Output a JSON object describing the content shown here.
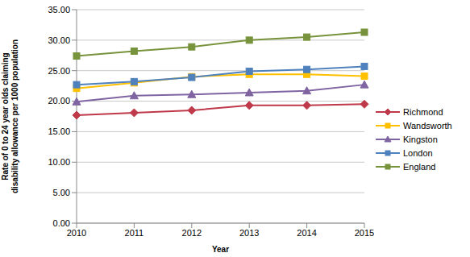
{
  "chart_data": {
    "type": "line",
    "x_label": "Year",
    "y_label": "Rate of 0 to 24 year olds claiming disability allowance per 1000 population",
    "categories": [
      "2010",
      "2011",
      "2012",
      "2013",
      "2014",
      "2015"
    ],
    "series": [
      {
        "name": "Richmond",
        "color": "#c0394b",
        "marker": "diamond",
        "values": [
          17.7,
          18.1,
          18.5,
          19.3,
          19.3,
          19.5
        ]
      },
      {
        "name": "Wandsworth",
        "color": "#ffc000",
        "marker": "square",
        "values": [
          22.1,
          23.0,
          24.0,
          24.4,
          24.4,
          24.1
        ]
      },
      {
        "name": "Kingston",
        "color": "#8064a2",
        "marker": "triangle",
        "values": [
          19.9,
          20.9,
          21.1,
          21.4,
          21.7,
          22.7
        ]
      },
      {
        "name": "London",
        "color": "#4f81bd",
        "marker": "square",
        "values": [
          22.7,
          23.2,
          23.9,
          24.9,
          25.2,
          25.7
        ]
      },
      {
        "name": "England",
        "color": "#77933c",
        "marker": "square",
        "values": [
          27.4,
          28.2,
          28.9,
          30.0,
          30.5,
          31.3
        ]
      }
    ],
    "ylim": [
      0,
      35
    ],
    "yticks": [
      {
        "value": 0,
        "label": "0.00"
      },
      {
        "value": 5,
        "label": "5.00"
      },
      {
        "value": 10,
        "label": "10.00"
      },
      {
        "value": 15,
        "label": "15.00"
      },
      {
        "value": 20,
        "label": "20.00"
      },
      {
        "value": 25,
        "label": "25.00"
      },
      {
        "value": 30,
        "label": "30.00"
      },
      {
        "value": 35,
        "label": "35.00"
      }
    ],
    "grid": true,
    "legend": "right"
  }
}
